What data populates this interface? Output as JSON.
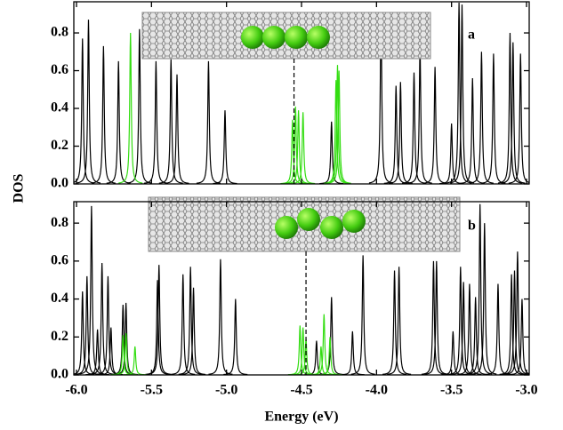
{
  "chart_data": [
    {
      "type": "spectrum",
      "panel_label": "a",
      "ylabel": "DOS",
      "xlim": [
        -6.0,
        -3.0
      ],
      "ylim": [
        0,
        0.965
      ],
      "yticks": [
        {
          "value": 0,
          "label": "0.0"
        },
        0.2,
        0.4,
        0.6,
        0.8
      ],
      "dashed_x": -4.55,
      "series": [
        {
          "color": "#000000",
          "x": [
            -5.96,
            -5.92,
            -5.82,
            -5.72,
            -5.58,
            -5.47,
            -5.37,
            -5.33,
            -5.12,
            -5.01,
            -4.3,
            -3.97,
            -3.87,
            -3.84,
            -3.75,
            -3.71,
            -3.61,
            -3.5,
            -3.45,
            -3.43,
            -3.36,
            -3.3,
            -3.22,
            -3.11,
            -3.09,
            -3.04
          ],
          "values": [
            0.77,
            0.87,
            0.73,
            0.65,
            0.82,
            0.65,
            0.66,
            0.58,
            0.65,
            0.39,
            0.33,
            0.9,
            0.52,
            0.54,
            0.59,
            0.72,
            0.62,
            0.32,
            0.96,
            0.95,
            0.56,
            0.7,
            0.69,
            0.8,
            0.75,
            0.69
          ]
        },
        {
          "color": "#33dd11",
          "x": [
            -5.64,
            -4.56,
            -4.54,
            -4.52,
            -4.49,
            -4.27,
            -4.26,
            -4.25
          ],
          "values": [
            0.8,
            0.34,
            0.41,
            0.39,
            0.38,
            0.55,
            0.63,
            0.6
          ]
        }
      ]
    },
    {
      "type": "spectrum",
      "panel_label": "b",
      "xlabel": "Energy (eV)",
      "xlim": [
        -6.0,
        -3.0
      ],
      "ylim": [
        0,
        0.913
      ],
      "xticks": [
        {
          "value": -6,
          "label": "-6.0"
        },
        -5.5,
        {
          "value": -5,
          "label": "-5.0"
        },
        -4.5,
        {
          "value": -4,
          "label": "-4.0"
        },
        -3.5,
        {
          "value": -3,
          "label": "-3.0"
        }
      ],
      "yticks": [
        {
          "value": 0,
          "label": "0.0"
        },
        0.2,
        0.4,
        0.6,
        0.8
      ],
      "dashed_x": -4.47,
      "series": [
        {
          "color": "#000000",
          "x": [
            -5.96,
            -5.93,
            -5.9,
            -5.86,
            -5.83,
            -5.79,
            -5.77,
            -5.69,
            -5.67,
            -5.46,
            -5.45,
            -5.29,
            -5.24,
            -5.22,
            -5.04,
            -4.94,
            -4.4,
            -4.3,
            -4.16,
            -4.09,
            -3.88,
            -3.85,
            -3.62,
            -3.6,
            -3.49,
            -3.44,
            -3.42,
            -3.38,
            -3.34,
            -3.31,
            -3.28,
            -3.19,
            -3.1,
            -3.08,
            -3.06,
            -3.03
          ],
          "values": [
            0.44,
            0.52,
            0.89,
            0.24,
            0.59,
            0.52,
            0.25,
            0.37,
            0.38,
            0.5,
            0.58,
            0.53,
            0.57,
            0.46,
            0.61,
            0.4,
            0.18,
            0.41,
            0.23,
            0.63,
            0.55,
            0.57,
            0.6,
            0.6,
            0.23,
            0.57,
            0.49,
            0.48,
            0.41,
            0.9,
            0.8,
            0.48,
            0.53,
            0.55,
            0.65,
            0.4
          ]
        },
        {
          "color": "#33dd11",
          "x": [
            -5.69,
            -5.67,
            -5.61,
            -4.51,
            -4.49,
            -4.47,
            -4.37,
            -4.35,
            -4.31
          ],
          "values": [
            0.21,
            0.22,
            0.15,
            0.26,
            0.25,
            0.19,
            0.15,
            0.32,
            0.2
          ]
        }
      ]
    }
  ]
}
